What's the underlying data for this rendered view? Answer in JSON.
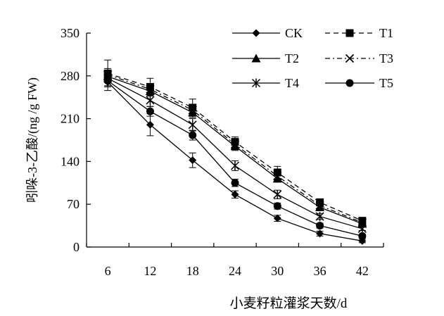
{
  "chart_data": {
    "type": "line",
    "title": "",
    "xlabel": "小麦籽粒灌浆天数/d",
    "ylabel": "吲哚-3-乙酸/(ng /g FW)",
    "categories": [
      6,
      12,
      18,
      24,
      30,
      36,
      42
    ],
    "x_ticks": [
      "6",
      "12",
      "18",
      "24",
      "30",
      "36",
      "42"
    ],
    "y_ticks": [
      "0",
      "70",
      "140",
      "210",
      "280",
      "350"
    ],
    "ylim": [
      0,
      350
    ],
    "grid": false,
    "legend_position": "top-right",
    "series": [
      {
        "name": "CK",
        "marker": "diamond",
        "dash": "solid",
        "values": [
          270,
          200,
          142,
          86,
          47,
          22,
          10
        ],
        "errors": [
          14,
          18,
          12,
          6,
          5,
          4,
          3
        ]
      },
      {
        "name": "T1",
        "marker": "square",
        "dash": "dashed",
        "values": [
          284,
          262,
          228,
          172,
          122,
          73,
          43
        ],
        "errors": [
          22,
          14,
          14,
          8,
          10,
          6,
          4
        ]
      },
      {
        "name": "T2",
        "marker": "triangle",
        "dash": "solid",
        "values": [
          279,
          255,
          220,
          165,
          112,
          65,
          38
        ],
        "errors": [
          10,
          8,
          8,
          7,
          6,
          5,
          3
        ]
      },
      {
        "name": "T3",
        "marker": "x",
        "dash": "dashdot",
        "values": [
          282,
          258,
          224,
          168,
          116,
          68,
          40
        ],
        "errors": [
          10,
          8,
          8,
          7,
          6,
          5,
          3
        ]
      },
      {
        "name": "T4",
        "marker": "star",
        "dash": "solid",
        "values": [
          276,
          240,
          200,
          133,
          86,
          50,
          30
        ],
        "errors": [
          12,
          10,
          10,
          8,
          7,
          5,
          3
        ]
      },
      {
        "name": "T5",
        "marker": "circle",
        "dash": "solid",
        "values": [
          272,
          222,
          183,
          105,
          67,
          35,
          18
        ],
        "errors": [
          10,
          8,
          8,
          6,
          5,
          4,
          3
        ]
      }
    ]
  }
}
